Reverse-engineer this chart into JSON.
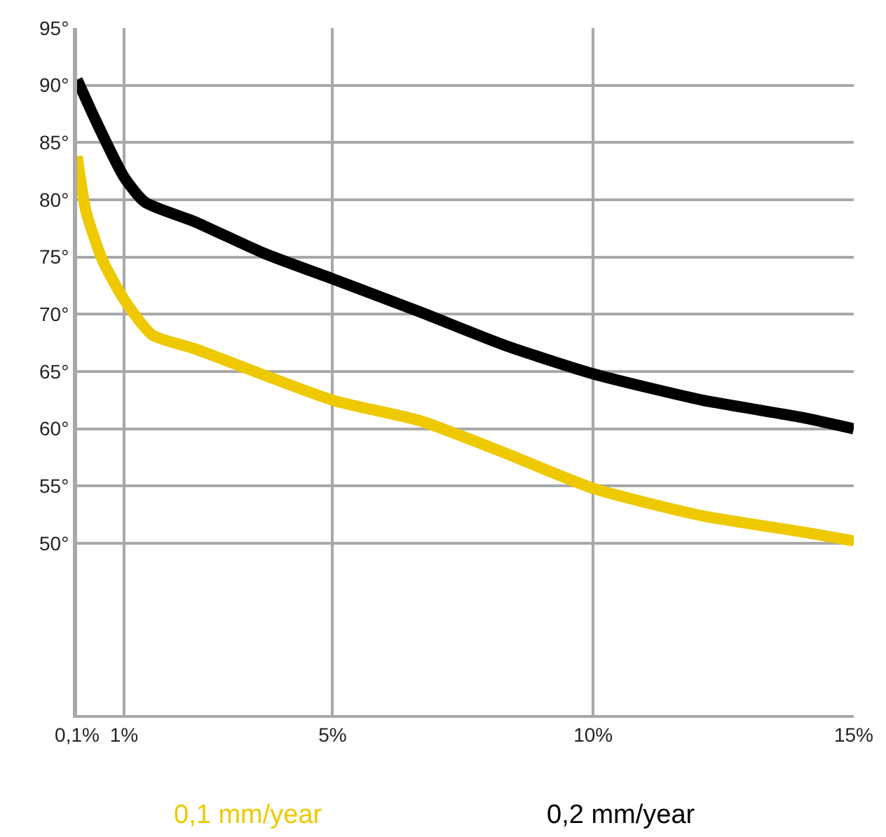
{
  "chart_data": {
    "type": "line",
    "x": [
      0.1,
      0.46,
      1,
      1.4,
      2.35,
      3.7,
      5,
      6.68,
      8.3,
      10,
      12.1,
      14,
      15
    ],
    "series": [
      {
        "name": "0,1 mm/year",
        "color": "#eec900",
        "x": [
          0.1,
          0.27,
          0.59,
          1,
          1.54,
          2.35,
          5,
          6.68,
          8.3,
          10,
          12.1,
          14,
          15
        ],
        "values": [
          83.8,
          79,
          74.7,
          71.3,
          68.2,
          67,
          62.5,
          60.7,
          57.9,
          54.8,
          52.4,
          51,
          50.2
        ]
      },
      {
        "name": "0,2 mm/year",
        "color": "#000000",
        "values": [
          90.5,
          86.9,
          82,
          79.8,
          78.1,
          75.3,
          73.1,
          70.2,
          67.3,
          64.8,
          62.5,
          61,
          60
        ]
      }
    ],
    "xlim": [
      0.1,
      15
    ],
    "xticks": [
      {
        "value": 0.1,
        "label": "0,1%"
      },
      {
        "value": 1,
        "label": "1%"
      },
      {
        "value": 5,
        "label": "5%"
      },
      {
        "value": 10,
        "label": "10%"
      },
      {
        "value": 15,
        "label": "15%"
      }
    ],
    "ylim": [
      35,
      95
    ],
    "yticks": [
      {
        "value": 50,
        "label": "50°"
      },
      {
        "value": 55,
        "label": "55°"
      },
      {
        "value": 60,
        "label": "60°"
      },
      {
        "value": 65,
        "label": "65°"
      },
      {
        "value": 70,
        "label": "70°"
      },
      {
        "value": 75,
        "label": "75°"
      },
      {
        "value": 80,
        "label": "80°"
      },
      {
        "value": 85,
        "label": "85°"
      },
      {
        "value": 90,
        "label": "90°"
      },
      {
        "value": 95,
        "label": "95°"
      }
    ],
    "grid": true,
    "legend": "bottom",
    "marker": "none",
    "line_style": "solid"
  }
}
